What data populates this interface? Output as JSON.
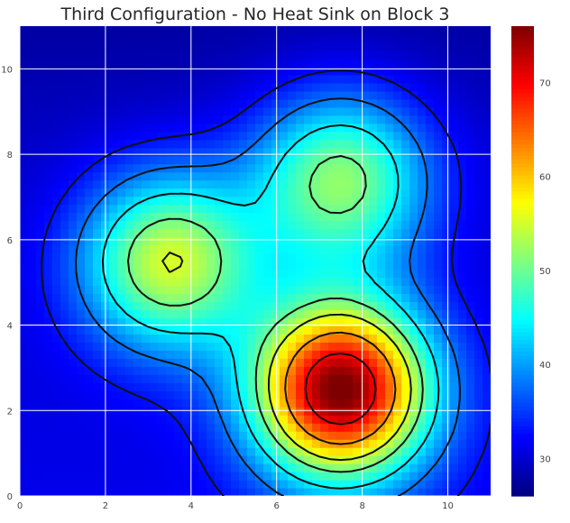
{
  "chart_data": {
    "type": "heatmap",
    "title": "Third Configuration - No Heat Sink on Block 3",
    "xlabel": "",
    "ylabel": "",
    "xlim": [
      0,
      11
    ],
    "ylim": [
      0,
      11
    ],
    "x_ticks": [
      0,
      2,
      4,
      6,
      8,
      10
    ],
    "y_ticks": [
      0,
      2,
      4,
      6,
      8,
      10
    ],
    "grid": true,
    "colormap": "jet",
    "colorbar": {
      "range": [
        26,
        76
      ],
      "ticks": [
        30,
        40,
        50,
        60,
        70
      ],
      "colors": [
        "#00007f",
        "#0000ff",
        "#007fff",
        "#00ffff",
        "#7fff7f",
        "#ffff00",
        "#ff7f00",
        "#ff0000",
        "#7f0000"
      ]
    },
    "background_value": 30,
    "hotspots": [
      {
        "x": 7.5,
        "y": 2.5,
        "peak": 76
      },
      {
        "x": 3.5,
        "y": 5.5,
        "peak": 55
      },
      {
        "x": 7.5,
        "y": 7.4,
        "peak": 52
      }
    ]
  }
}
